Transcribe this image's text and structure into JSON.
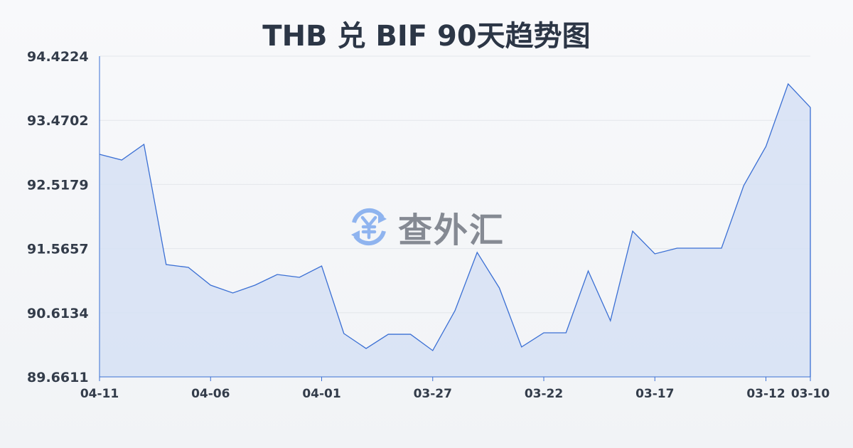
{
  "chart_data": {
    "type": "area",
    "title": "THB 兑 BIF 90天趋势图",
    "xlabel": "",
    "ylabel": "",
    "yticks": [
      "94.4224",
      "93.4702",
      "92.5179",
      "91.5657",
      "90.6134",
      "89.6611"
    ],
    "ylim": [
      89.6611,
      94.4224
    ],
    "xtick_labels": [
      {
        "label": "04-11",
        "index": 0
      },
      {
        "label": "04-06",
        "index": 5
      },
      {
        "label": "04-01",
        "index": 10
      },
      {
        "label": "03-27",
        "index": 15
      },
      {
        "label": "03-22",
        "index": 20
      },
      {
        "label": "03-17",
        "index": 25
      },
      {
        "label": "03-12",
        "index": 30
      },
      {
        "label": "03-10",
        "index": 32
      }
    ],
    "values": [
      92.965,
      92.881,
      93.113,
      91.329,
      91.287,
      91.023,
      90.907,
      91.023,
      91.181,
      91.139,
      91.308,
      90.305,
      90.083,
      90.294,
      90.294,
      90.052,
      90.643,
      91.509,
      90.981,
      90.105,
      90.316,
      90.316,
      91.234,
      90.495,
      91.825,
      91.488,
      91.572,
      91.572,
      91.572,
      92.501,
      93.082,
      94.011,
      93.662
    ],
    "grid": true,
    "line_color": "#3a6fd4",
    "fill_color": "#d6e1f5"
  },
  "watermark": {
    "text": "查外汇",
    "icon": "yen-exchange-icon"
  }
}
